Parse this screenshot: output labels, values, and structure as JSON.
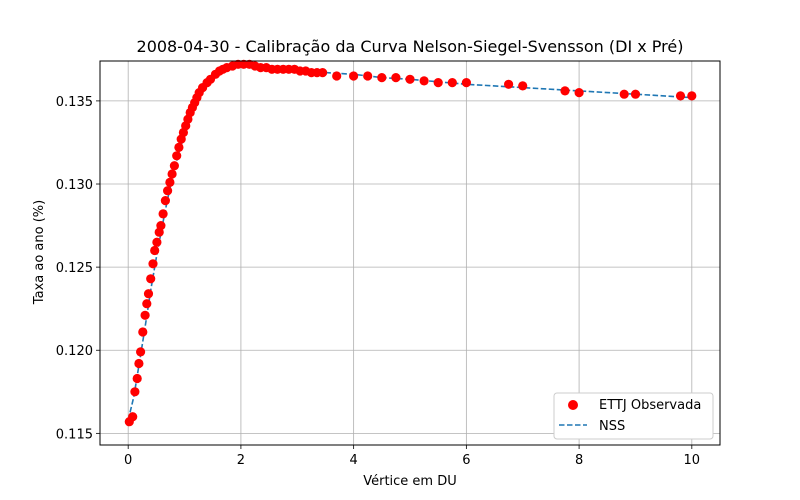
{
  "chart_data": {
    "type": "scatter",
    "title": "2008-04-30 - Calibração da Curva Nelson-Siegel-Svensson (DI x Pré)",
    "xlabel": "Vértice em DU",
    "ylabel": "Taxa ao ano (%)",
    "xlim": [
      -0.5,
      10.5
    ],
    "ylim": [
      0.1143,
      0.1374
    ],
    "x_ticks": [
      0,
      2,
      4,
      6,
      8,
      10
    ],
    "y_ticks": [
      0.115,
      0.12,
      0.125,
      0.13,
      0.135
    ],
    "x_tick_labels": [
      "0",
      "2",
      "4",
      "6",
      "8",
      "10"
    ],
    "y_tick_labels": [
      "0.115",
      "0.120",
      "0.125",
      "0.130",
      "0.135"
    ],
    "grid": true,
    "legend_position": "bottom-right",
    "colors": {
      "observed": "#ff0000",
      "nss": "#1f77b4"
    },
    "series": [
      {
        "name": "ETTJ Observada",
        "kind": "scatter",
        "x": [
          0.02,
          0.08,
          0.12,
          0.16,
          0.19,
          0.22,
          0.26,
          0.3,
          0.33,
          0.36,
          0.4,
          0.44,
          0.47,
          0.51,
          0.55,
          0.58,
          0.62,
          0.66,
          0.7,
          0.74,
          0.78,
          0.82,
          0.86,
          0.9,
          0.94,
          0.98,
          1.02,
          1.06,
          1.1,
          1.14,
          1.18,
          1.22,
          1.26,
          1.32,
          1.4,
          1.46,
          1.55,
          1.62,
          1.68,
          1.75,
          1.85,
          1.95,
          2.05,
          2.15,
          2.25,
          2.35,
          2.45,
          2.55,
          2.65,
          2.75,
          2.85,
          2.95,
          3.05,
          3.15,
          3.25,
          3.35,
          3.45,
          3.7,
          4.0,
          4.25,
          4.5,
          4.75,
          5.0,
          5.25,
          5.5,
          5.75,
          6.0,
          6.75,
          7.0,
          7.75,
          8.0,
          8.8,
          9.0,
          9.8,
          10.0
        ],
        "y": [
          0.1157,
          0.116,
          0.1175,
          0.1183,
          0.1192,
          0.1199,
          0.1211,
          0.1221,
          0.1228,
          0.1234,
          0.1243,
          0.1252,
          0.126,
          0.1265,
          0.1271,
          0.1275,
          0.1282,
          0.129,
          0.1296,
          0.1301,
          0.1306,
          0.1311,
          0.1317,
          0.1322,
          0.1327,
          0.1331,
          0.1335,
          0.1339,
          0.1343,
          0.1346,
          0.1349,
          0.1352,
          0.1355,
          0.1358,
          0.1361,
          0.1363,
          0.1366,
          0.1368,
          0.1369,
          0.137,
          0.1371,
          0.1372,
          0.1372,
          0.1372,
          0.1371,
          0.137,
          0.137,
          0.1369,
          0.1369,
          0.1369,
          0.1369,
          0.1369,
          0.1368,
          0.1368,
          0.1367,
          0.1367,
          0.1367,
          0.1365,
          0.1365,
          0.1365,
          0.1364,
          0.1364,
          0.1363,
          0.1362,
          0.1361,
          0.1361,
          0.1361,
          0.136,
          0.1359,
          0.1356,
          0.1355,
          0.1354,
          0.1354,
          0.1353,
          0.1353
        ]
      },
      {
        "name": "NSS",
        "kind": "line",
        "x": [
          0.0,
          0.1,
          0.2,
          0.3,
          0.4,
          0.5,
          0.6,
          0.7,
          0.8,
          0.9,
          1.0,
          1.1,
          1.2,
          1.3,
          1.4,
          1.5,
          1.6,
          1.8,
          2.0,
          2.2,
          2.5,
          3.0,
          3.5,
          4.0,
          4.5,
          5.0,
          6.0,
          7.0,
          8.0,
          9.0,
          10.0
        ],
        "y": [
          0.1158,
          0.1172,
          0.1193,
          0.1214,
          0.1236,
          0.1256,
          0.1274,
          0.1291,
          0.1306,
          0.1319,
          0.133,
          0.134,
          0.1348,
          0.1355,
          0.136,
          0.1364,
          0.1367,
          0.137,
          0.1372,
          0.1372,
          0.1371,
          0.1369,
          0.1367,
          0.1366,
          0.1364,
          0.1363,
          0.136,
          0.1358,
          0.1356,
          0.1354,
          0.1352
        ]
      }
    ]
  }
}
